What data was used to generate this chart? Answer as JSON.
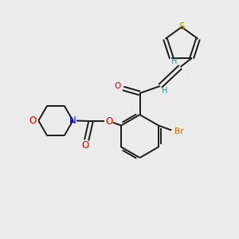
{
  "background_color": "#ebebeb",
  "bond_color": "#1a1a1a",
  "S_color": "#9a9a00",
  "O_color": "#dd0000",
  "N_color": "#0000cc",
  "Br_color": "#bb6600",
  "H_color": "#3a8888",
  "figsize": [
    3.0,
    3.0
  ],
  "dpi": 100,
  "xlim": [
    0,
    10
  ],
  "ylim": [
    0,
    10
  ]
}
